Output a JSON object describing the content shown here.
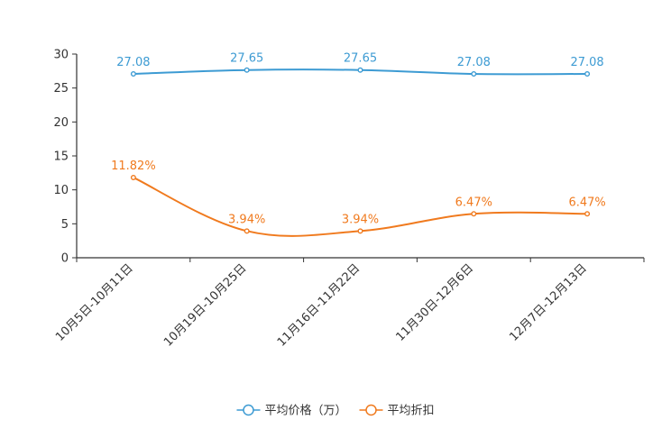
{
  "chart_data": {
    "type": "line",
    "categories": [
      "10月5日-10月11日",
      "10月19日-10月25日",
      "11月16日-11月22日",
      "11月30日-12月6日",
      "12月7日-12月13日"
    ],
    "ylim": [
      0,
      30
    ],
    "yticks": [
      0,
      5,
      10,
      15,
      20,
      25,
      30
    ],
    "grid": false,
    "legend_position": "bottom-center",
    "series": [
      {
        "name": "平均价格（万）",
        "color": "#3d9bd3",
        "values": [
          27.08,
          27.65,
          27.65,
          27.08,
          27.08
        ],
        "labels": [
          "27.08",
          "27.65",
          "27.65",
          "27.08",
          "27.08"
        ]
      },
      {
        "name": "平均折扣",
        "color": "#f07a1e",
        "values": [
          11.82,
          3.94,
          3.94,
          6.47,
          6.47
        ],
        "labels": [
          "11.82%",
          "3.94%",
          "3.94%",
          "6.47%",
          "6.47%"
        ]
      }
    ]
  }
}
